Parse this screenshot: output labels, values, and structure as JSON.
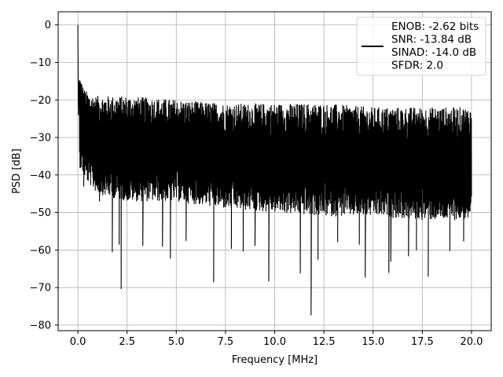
{
  "chart_data": {
    "type": "line",
    "title": "",
    "xlabel": "Frequency [MHz]",
    "ylabel": "PSD [dB]",
    "xlim": [
      -1.0,
      21.0
    ],
    "ylim": [
      -81.5,
      3.5
    ],
    "xticks": [
      0.0,
      2.5,
      5.0,
      7.5,
      10.0,
      12.5,
      15.0,
      17.5,
      20.0
    ],
    "xtick_labels": [
      "0.0",
      "2.5",
      "5.0",
      "7.5",
      "10.0",
      "12.5",
      "15.0",
      "17.5",
      "20.0"
    ],
    "yticks": [
      0,
      -10,
      -20,
      -30,
      -40,
      -50,
      -60,
      -70,
      -80
    ],
    "ytick_labels": [
      "0",
      "−10",
      "−20",
      "−30",
      "−40",
      "−50",
      "−60",
      "−70",
      "−80"
    ],
    "grid": true,
    "legend_position": "top-right",
    "legend_lines": [
      "ENOB: -2.62 bits",
      "SNR: -13.84 dB",
      "SINAD: -14.0 dB",
      "SFDR: 2.0"
    ],
    "line_color": "#000000",
    "series": [
      {
        "x_range": [
          0.0,
          20.0
        ],
        "peak": {
          "x": 0.0,
          "y": 0.0
        },
        "upper_envelope": [
          [
            0.1,
            -13
          ],
          [
            0.3,
            -17
          ],
          [
            0.6,
            -18.5
          ],
          [
            1.0,
            -19
          ],
          [
            2.5,
            -19
          ],
          [
            5.0,
            -20
          ],
          [
            7.5,
            -21
          ],
          [
            10.0,
            -21
          ],
          [
            12.5,
            -21
          ],
          [
            15.0,
            -22
          ],
          [
            17.5,
            -22
          ],
          [
            20.0,
            -22
          ]
        ],
        "lower_envelope": [
          [
            0.1,
            -38
          ],
          [
            0.5,
            -42
          ],
          [
            1.0,
            -45
          ],
          [
            2.5,
            -47
          ],
          [
            5.0,
            -47
          ],
          [
            7.5,
            -49
          ],
          [
            10.0,
            -50
          ],
          [
            12.5,
            -51
          ],
          [
            15.0,
            -51
          ],
          [
            17.5,
            -52
          ],
          [
            20.0,
            -52
          ]
        ],
        "dips": [
          [
            0.3,
            -43
          ],
          [
            1.1,
            -47
          ],
          [
            1.75,
            -60.5
          ],
          [
            2.1,
            -58.5
          ],
          [
            2.2,
            -70.3
          ],
          [
            3.3,
            -58.8
          ],
          [
            4.3,
            -59.0
          ],
          [
            4.7,
            -62.2
          ],
          [
            5.5,
            -57.5
          ],
          [
            6.9,
            -68.5
          ],
          [
            7.8,
            -59.6
          ],
          [
            8.4,
            -60.3
          ],
          [
            9.0,
            -58.8
          ],
          [
            9.7,
            -68.3
          ],
          [
            11.3,
            -66.2
          ],
          [
            11.85,
            -77.3
          ],
          [
            12.2,
            -62.5
          ],
          [
            13.2,
            -57.8
          ],
          [
            14.3,
            -58.5
          ],
          [
            14.6,
            -67.3
          ],
          [
            15.8,
            -66.0
          ],
          [
            15.9,
            -63.0
          ],
          [
            16.8,
            -61.6
          ],
          [
            17.2,
            -60.0
          ],
          [
            17.8,
            -67.0
          ],
          [
            18.9,
            -60.2
          ],
          [
            19.6,
            -57.6
          ]
        ]
      }
    ]
  }
}
